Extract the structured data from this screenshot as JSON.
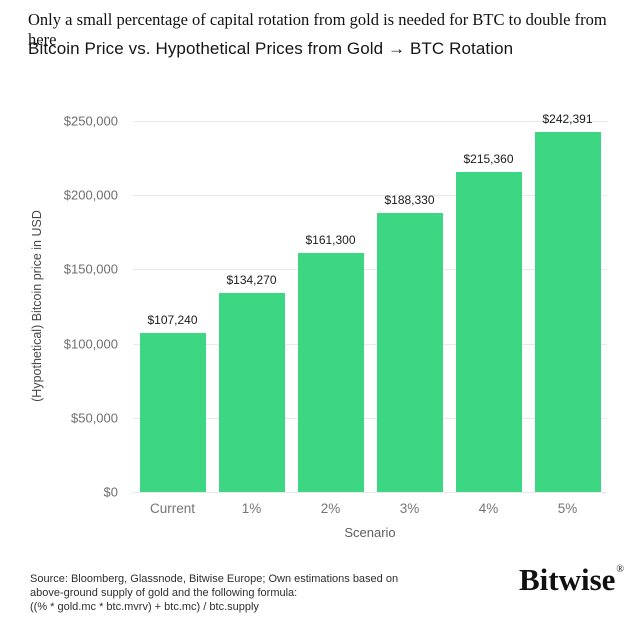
{
  "headline": "Only a small percentage of capital rotation from gold is needed for BTC to double from here",
  "title": "Bitcoin Price vs. Hypothetical Prices from Gold → BTC Rotation",
  "chart_data": {
    "type": "bar",
    "title": "Bitcoin Price vs. Hypothetical Prices from Gold → BTC Rotation",
    "categories": [
      "Current",
      "1%",
      "2%",
      "3%",
      "4%",
      "5%"
    ],
    "values": [
      107240,
      134270,
      161300,
      188330,
      215360,
      242391
    ],
    "value_labels": [
      "$107,240",
      "$134,270",
      "$161,300",
      "$188,330",
      "$215,360",
      "$242,391"
    ],
    "xlabel": "Scenario",
    "ylabel": "(Hypothetical) Bitcoin price in USD",
    "ylim": [
      0,
      250000
    ],
    "yticks": [
      {
        "value": 0,
        "label": "$0"
      },
      {
        "value": 50000,
        "label": "$50,000"
      },
      {
        "value": 100000,
        "label": "$100,000"
      },
      {
        "value": 150000,
        "label": "$150,000"
      },
      {
        "value": 200000,
        "label": "$200,000"
      },
      {
        "value": 250000,
        "label": "$250,000"
      }
    ],
    "grid": true,
    "legend_position": "none",
    "bar_color": "#3dd683"
  },
  "footer": {
    "source_lines": [
      "Source: Bloomberg, Glassnode, Bitwise Europe; Own estimations based on",
      "above-ground supply of gold and the following formula:",
      "((% * gold.mc * btc.mvrv) + btc.mc) / btc.supply"
    ],
    "logo_text": "Bitwise",
    "logo_mark": "®"
  },
  "colors": {
    "bar": "#3dd683",
    "grid": "#e9e9e9",
    "tick_text": "#6f6f6f",
    "value_text": "#1c1c1c",
    "background": "#ffffff"
  }
}
